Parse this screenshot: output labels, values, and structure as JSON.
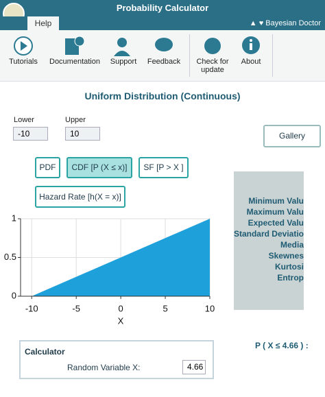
{
  "window": {
    "title": "Probability Calculator",
    "tab": "Help",
    "brand": "Bayesian Doctor"
  },
  "ribbon": {
    "buttons": [
      "Tutorials",
      "Documentation",
      "Support",
      "Feedback",
      "Check for update",
      "About"
    ]
  },
  "heading": "Uniform Distribution (Continuous)",
  "params": {
    "lower_label": "Lower",
    "lower_value": "-10",
    "upper_label": "Upper",
    "upper_value": "10",
    "gallery": "Gallery"
  },
  "modes": {
    "pdf": "PDF",
    "cdf": "CDF [P (X ≤ x)]",
    "sf": "SF [P > X ]",
    "hazard": "Hazard Rate [h(X = x)]"
  },
  "stats_panel": {
    "labels": [
      "Minimum Valu",
      "Maximum Valu",
      "Expected Valu",
      "Standard Deviatio",
      "Media",
      "Skewnes",
      "Kurtosi",
      "Entrop"
    ]
  },
  "calculator": {
    "title": "Calculator",
    "label": "Random Variable X:",
    "value": "4.66",
    "result_label": "P ( X ≤ 4.66 ) :"
  },
  "chart_data": {
    "type": "area",
    "x": [
      -10,
      10
    ],
    "values": [
      0,
      1
    ],
    "color": "#1ea0da",
    "xlim": [
      -11.25,
      10
    ],
    "ylim": [
      0,
      1
    ],
    "xticks": [
      -10,
      -5,
      0,
      5,
      10
    ],
    "yticks": [
      0,
      0.5,
      1
    ],
    "xlabel": "X",
    "grid": true
  }
}
